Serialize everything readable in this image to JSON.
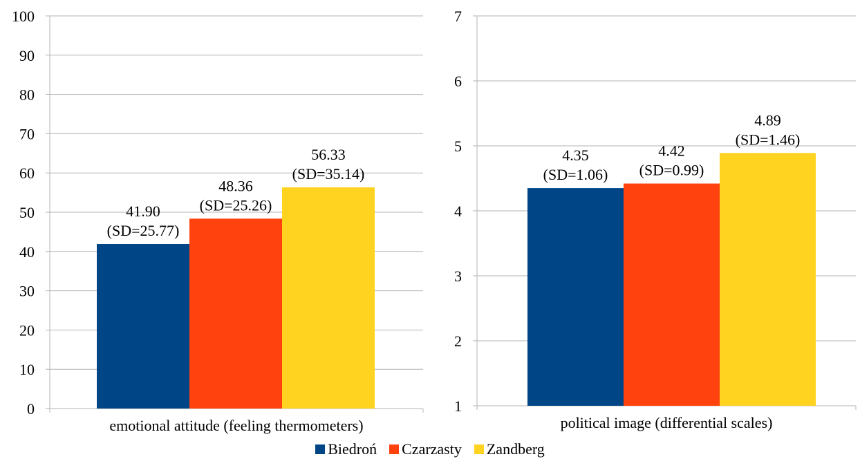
{
  "chart_data": [
    {
      "type": "bar",
      "categories": [
        "emotional attitude (feeling thermometers)"
      ],
      "ylim": [
        0,
        100
      ],
      "yticks": [
        0,
        10,
        20,
        30,
        40,
        50,
        60,
        70,
        80,
        90,
        100
      ],
      "grid": true,
      "series": [
        {
          "name": "Biedroń",
          "values": [
            41.9
          ],
          "labels": [
            [
              "41.90",
              "(SD=25.77)"
            ]
          ]
        },
        {
          "name": "Czarzasty",
          "values": [
            48.36
          ],
          "labels": [
            [
              "48.36",
              "(SD=25.26)"
            ]
          ]
        },
        {
          "name": "Zandberg",
          "values": [
            56.33
          ],
          "labels": [
            [
              "56.33",
              "(SD=35.14)"
            ]
          ]
        }
      ]
    },
    {
      "type": "bar",
      "categories": [
        "political image (differential scales)"
      ],
      "ylim": [
        1,
        7
      ],
      "yticks": [
        1,
        2,
        3,
        4,
        5,
        6,
        7
      ],
      "grid": true,
      "series": [
        {
          "name": "Biedroń",
          "values": [
            4.35
          ],
          "labels": [
            [
              "4.35",
              "(SD=1.06)"
            ]
          ]
        },
        {
          "name": "Czarzasty",
          "values": [
            4.42
          ],
          "labels": [
            [
              "4.42",
              "(SD=0.99)"
            ]
          ]
        },
        {
          "name": "Zandberg",
          "values": [
            4.89
          ],
          "labels": [
            [
              "4.89",
              "(SD=1.46)"
            ]
          ]
        }
      ]
    }
  ],
  "legend": {
    "placement": "bottom",
    "items": [
      {
        "label": "Biedroń",
        "color": "#004586"
      },
      {
        "label": "Czarzasty",
        "color": "#ff420e"
      },
      {
        "label": "Zandberg",
        "color": "#ffd320"
      }
    ]
  },
  "colors": {
    "grid": "#b3b3b3",
    "axis": "#b3b3b3"
  }
}
